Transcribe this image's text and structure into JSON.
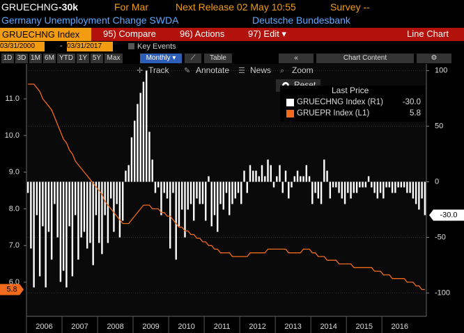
{
  "header": {
    "ticker": "GRUECHNG",
    "last": "-30k",
    "period": "For Mar",
    "next_release": "Next Release 02 May 10:55",
    "survey": "Survey --",
    "name": "Germany Unemployment Change SWDA",
    "source": "Deutsche Bundesbank"
  },
  "menu": {
    "security": "GRUECHNG Index",
    "items": [
      "95) Compare",
      "96) Actions",
      "97) Edit ▾"
    ],
    "view": "Line Chart"
  },
  "range": {
    "start": "03/31/2000",
    "end": "03/31/2017",
    "key_events": "Key Events"
  },
  "periods": [
    "1D",
    "3D",
    "1M",
    "6M",
    "YTD",
    "1Y",
    "5Y",
    "Max"
  ],
  "frequency": "Monthly ▾",
  "table": "Table",
  "collapse": "«",
  "chart_content": "Chart Content",
  "tools": [
    "Track",
    "Annotate",
    "News",
    "Zoom"
  ],
  "reset": "Reset",
  "chart_data": {
    "type": "bar",
    "legend_title": "Last Price",
    "x_labels": [
      "2006",
      "2007",
      "2008",
      "2009",
      "2010",
      "2011",
      "2012",
      "2013",
      "2014",
      "2015",
      "2016"
    ],
    "ylim": [
      5.07,
      11.95
    ],
    "yticks": [
      {
        "value": 6,
        "label": "6.0"
      },
      {
        "value": 7,
        "label": "7.0"
      },
      {
        "value": 8,
        "label": "8.0"
      },
      {
        "value": 9,
        "label": "9.0"
      },
      {
        "value": 10,
        "label": "10.0"
      },
      {
        "value": 11,
        "label": "11.0"
      }
    ],
    "y2lim": [
      -121,
      106
    ],
    "y2ticks": [
      100,
      50,
      0,
      -50,
      -100
    ],
    "grid": true,
    "series": [
      {
        "name": "GRUECHNG Index  (R1)",
        "last_label": "-30.0",
        "type": "bar",
        "axis": "y2",
        "color": "#ffffff",
        "values": [
          -10,
          -60,
          -95,
          -30,
          -85,
          -40,
          -95,
          -45,
          -70,
          -20,
          -50,
          -90,
          -80,
          -95,
          -40,
          -85,
          -30,
          -70,
          -50,
          -45,
          -60,
          -55,
          -75,
          -30,
          -55,
          -65,
          -30,
          -55,
          -15,
          -45,
          -20,
          -50,
          -35,
          10,
          15,
          40,
          55,
          70,
          80,
          90,
          100,
          45,
          20,
          -10,
          -5,
          -30,
          -10,
          -15,
          -60,
          -10,
          -70,
          -40,
          -25,
          -50,
          -25,
          -20,
          -35,
          -15,
          -20,
          -20,
          -35,
          5,
          -40,
          -30,
          -45,
          -20,
          -25,
          -10,
          -30,
          -20,
          -15,
          -10,
          -20,
          10,
          -10,
          15,
          10,
          10,
          5,
          15,
          5,
          20,
          15,
          -5,
          5,
          15,
          -10,
          10,
          -15,
          -5,
          5,
          10,
          5,
          5,
          15,
          5,
          -20,
          -10,
          -15,
          -20,
          20,
          10,
          -15,
          -5,
          -5,
          -10,
          -15,
          -20,
          -10,
          -15,
          -10,
          -10,
          -5,
          -5,
          -5,
          5,
          -5,
          -10,
          -15,
          -10,
          -15,
          -5,
          -5,
          -10,
          -10,
          -5,
          -5,
          -5,
          -10,
          -10,
          -15,
          -20,
          -25,
          -15,
          -30
        ]
      },
      {
        "name": "GRUEPR Index  (L1)",
        "last_label": "5.8",
        "type": "line",
        "color": "#f26b1d",
        "values": [
          11.4,
          11.4,
          11.4,
          11.3,
          11.2,
          11.0,
          10.9,
          10.8,
          10.7,
          10.5,
          10.3,
          10.1,
          9.9,
          9.8,
          9.6,
          9.5,
          9.3,
          9.2,
          9.1,
          9.0,
          8.9,
          8.8,
          8.7,
          8.6,
          8.5,
          8.4,
          8.2,
          8.1,
          8.0,
          7.9,
          7.8,
          7.7,
          7.6,
          7.6,
          7.6,
          7.7,
          7.8,
          7.9,
          8.0,
          8.1,
          8.1,
          8.1,
          8.0,
          8.0,
          8.0,
          7.9,
          7.9,
          7.8,
          7.8,
          7.7,
          7.6,
          7.5,
          7.5,
          7.4,
          7.4,
          7.3,
          7.3,
          7.2,
          7.2,
          7.1,
          7.1,
          7.0,
          7.0,
          6.9,
          6.9,
          6.8,
          6.8,
          6.8,
          6.8,
          6.7,
          6.7,
          6.7,
          6.7,
          6.7,
          6.7,
          6.8,
          6.8,
          6.8,
          6.8,
          6.8,
          6.8,
          6.9,
          6.9,
          6.9,
          6.9,
          6.9,
          6.9,
          6.9,
          6.8,
          6.8,
          6.8,
          6.8,
          6.8,
          6.9,
          6.9,
          6.9,
          6.8,
          6.8,
          6.7,
          6.7,
          6.7,
          6.6,
          6.6,
          6.6,
          6.6,
          6.5,
          6.5,
          6.5,
          6.5,
          6.5,
          6.4,
          6.4,
          6.4,
          6.4,
          6.4,
          6.4,
          6.4,
          6.3,
          6.3,
          6.3,
          6.2,
          6.2,
          6.2,
          6.1,
          6.1,
          6.1,
          6.1,
          6.1,
          6.0,
          6.0,
          6.0,
          5.9,
          5.9,
          5.8,
          5.8
        ]
      }
    ]
  }
}
